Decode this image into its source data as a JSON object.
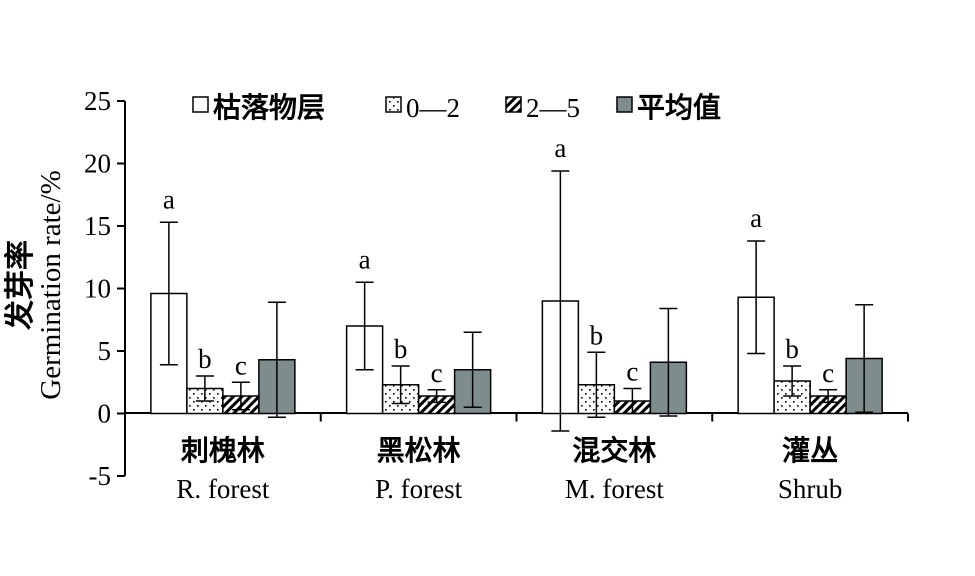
{
  "chart_data": {
    "type": "bar",
    "title": "",
    "ylabel_cn": "发芽率",
    "ylabel_en": "Germination rate/%",
    "ylim": [
      -5,
      25
    ],
    "yticks": [
      25,
      20,
      15,
      10,
      5,
      0,
      -5
    ],
    "ytick_labels": [
      "25",
      "20",
      "15",
      "10",
      "5",
      "0",
      "-5"
    ],
    "grid": false,
    "legend_position": "top",
    "categories": [
      {
        "cn": "刺槐林",
        "en": "R. forest"
      },
      {
        "cn": "黑松林",
        "en": "P. forest"
      },
      {
        "cn": "混交林",
        "en": "M. forest"
      },
      {
        "cn": "灌丛",
        "en": "Shrub"
      }
    ],
    "series": [
      {
        "name": "枯落物层",
        "pattern": "white",
        "values": [
          9.6,
          7.0,
          9.0,
          9.3
        ],
        "errors": [
          5.7,
          3.5,
          10.4,
          4.5
        ],
        "letters": [
          "a",
          "a",
          "a",
          "a"
        ]
      },
      {
        "name": "0—2",
        "pattern": "dots",
        "values": [
          2.0,
          2.3,
          2.3,
          2.6
        ],
        "errors": [
          1.0,
          1.5,
          2.6,
          1.2
        ],
        "letters": [
          "b",
          "b",
          "b",
          "b"
        ]
      },
      {
        "name": "2—5",
        "pattern": "diagonal",
        "values": [
          1.4,
          1.4,
          1.0,
          1.4
        ],
        "errors": [
          1.1,
          0.5,
          1.0,
          0.5
        ],
        "letters": [
          "c",
          "c",
          "c",
          "c"
        ]
      },
      {
        "name": "平均值",
        "pattern": "gray",
        "values": [
          4.3,
          3.5,
          4.1,
          4.4
        ],
        "errors": [
          4.6,
          3.0,
          4.3,
          4.3
        ],
        "letters": [
          "",
          "",
          "",
          ""
        ]
      }
    ],
    "colors": {
      "axis": "#000000",
      "bar_stroke": "#000000",
      "bar_white": "#ffffff",
      "bar_gray": "#7f8c8d"
    }
  }
}
